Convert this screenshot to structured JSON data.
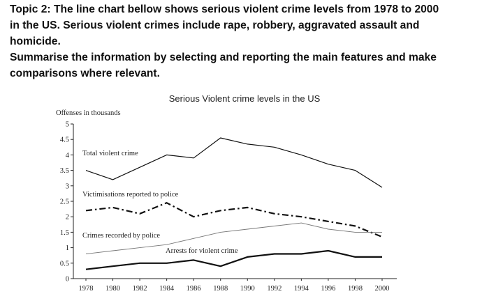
{
  "prompt": {
    "line1": "Topic 2: The line chart bellow shows serious violent crime levels from 1978 to 2000",
    "line2": "in the US. Serious violent crimes include rape, robbery, aggravated assault and",
    "line3": "homicide.",
    "line4": "Summarise the information by selecting and reporting the main features and make",
    "line5": "comparisons where relevant."
  },
  "chart_data": {
    "type": "line",
    "title": "Serious Violent crime levels in the US",
    "ylabel": "Offenses in thousands",
    "xlabel": "",
    "ylim": [
      0,
      5
    ],
    "yticks": [
      "0",
      "0.5",
      "1",
      "1.5",
      "2",
      "2.5",
      "3",
      "3.5",
      "4",
      "4.5",
      "5"
    ],
    "x": [
      1978,
      1980,
      1982,
      1984,
      1986,
      1988,
      1990,
      1992,
      1994,
      1996,
      1998,
      2000
    ],
    "xtick_labels": [
      "1978",
      "1980",
      "1982",
      "1984",
      "1986",
      "1988",
      "1990",
      "1992",
      "1994",
      "1996",
      "1998",
      "2000"
    ],
    "grid": false,
    "series": [
      {
        "name": "Total violent crime",
        "style": "solid",
        "values": [
          3.5,
          3.2,
          3.6,
          4.0,
          3.9,
          4.55,
          4.35,
          4.25,
          4.0,
          3.7,
          3.5,
          2.95
        ]
      },
      {
        "name": "Victimisations reported to police",
        "style": "dashdot",
        "values": [
          2.2,
          2.3,
          2.1,
          2.45,
          2.0,
          2.2,
          2.3,
          2.1,
          2.0,
          1.85,
          1.7,
          1.35
        ]
      },
      {
        "name": "Crimes recorded by police",
        "style": "thin",
        "values": [
          0.8,
          0.9,
          1.0,
          1.1,
          1.3,
          1.5,
          1.6,
          1.7,
          1.8,
          1.6,
          1.5,
          1.5
        ]
      },
      {
        "name": "Arrests for violent crime",
        "style": "bold",
        "values": [
          0.3,
          0.4,
          0.5,
          0.5,
          0.6,
          0.4,
          0.7,
          0.8,
          0.8,
          0.9,
          0.7,
          0.7
        ]
      }
    ],
    "colors": {
      "line": "#111111",
      "light": "#777777"
    }
  }
}
